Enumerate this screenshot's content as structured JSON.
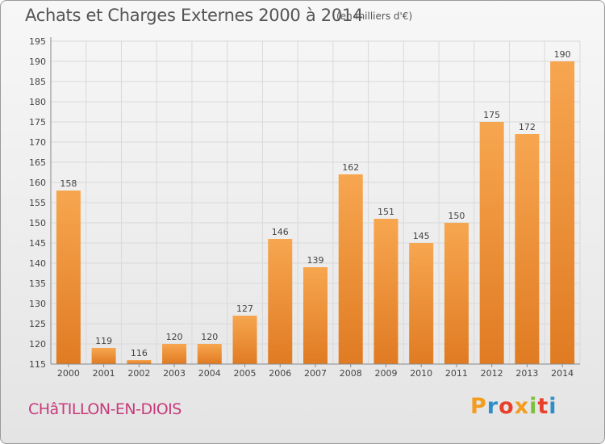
{
  "header": {
    "title": "Achats et Charges Externes 2000 à 2014",
    "unit": "(en milliers d'€)"
  },
  "footer": {
    "city": "CHâTILLON-EN-DIOIS",
    "logo_text": "Proxiti",
    "logo_colors": [
      "#f39c1e",
      "#2f8ec8",
      "#e8402a",
      "#f39c1e",
      "#7bbf3a",
      "#e8402a",
      "#2f8ec8"
    ]
  },
  "colors": {
    "bar_light": "#f7a650",
    "bar_dark": "#e07b22",
    "grid": "#d9d9d9",
    "text": "#444444"
  },
  "chart_data": {
    "type": "bar",
    "title": "Achats et Charges Externes 2000 à 2014",
    "subtitle": "(en milliers d'€)",
    "categories": [
      "2000",
      "2001",
      "2002",
      "2003",
      "2004",
      "2005",
      "2006",
      "2007",
      "2008",
      "2009",
      "2010",
      "2011",
      "2012",
      "2013",
      "2014"
    ],
    "values": [
      158,
      119,
      116,
      120,
      120,
      127,
      146,
      139,
      162,
      151,
      145,
      150,
      175,
      172,
      190
    ],
    "ylim": [
      115,
      195
    ],
    "yticks": [
      115,
      120,
      125,
      130,
      135,
      140,
      145,
      150,
      155,
      160,
      165,
      170,
      175,
      180,
      185,
      190,
      195
    ],
    "grid": true,
    "data_labels": true
  }
}
